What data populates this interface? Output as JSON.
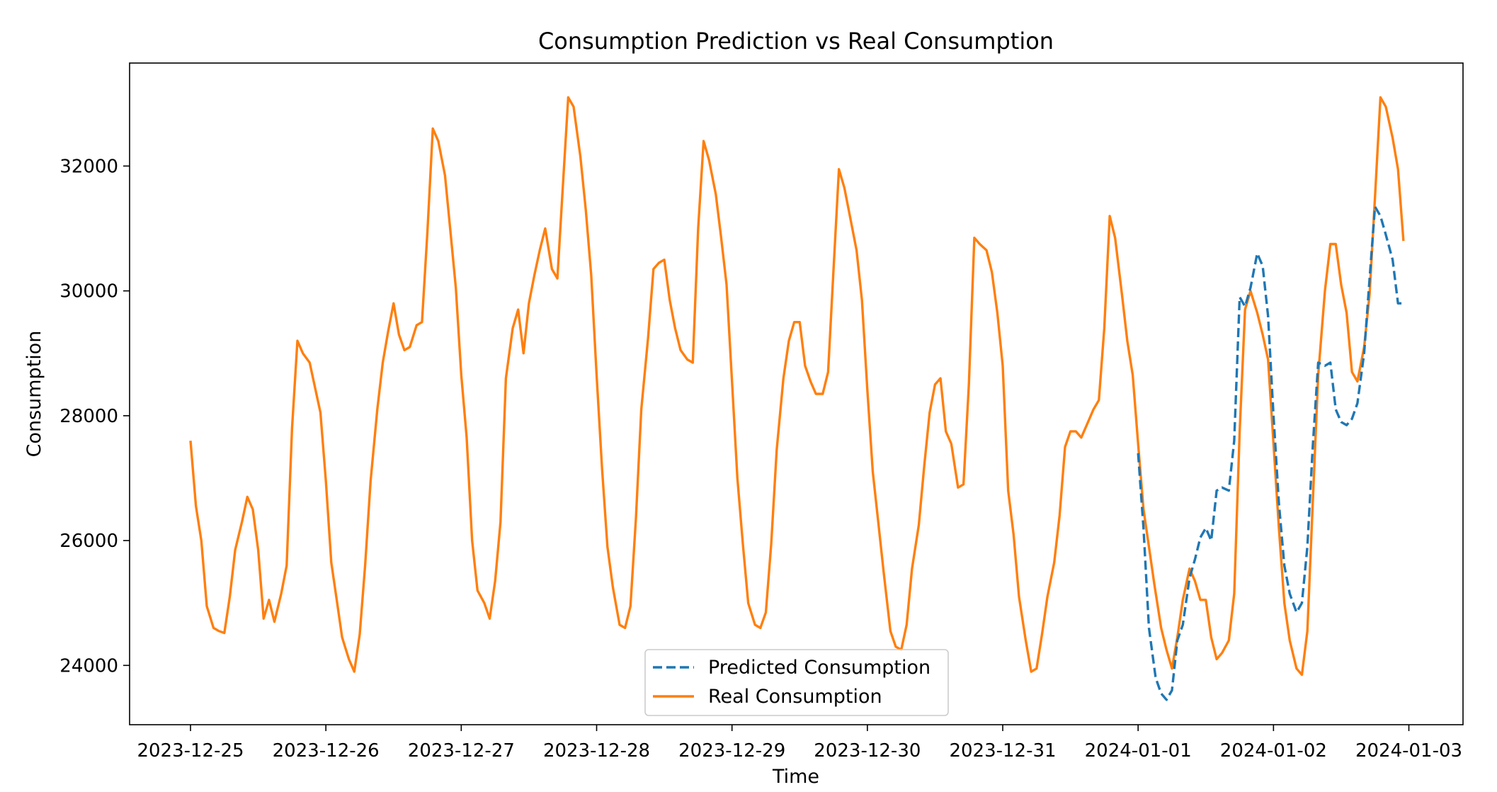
{
  "chart_data": {
    "type": "line",
    "title": "Consumption Prediction vs Real Consumption",
    "xlabel": "Time",
    "ylabel": "Consumption",
    "x_tick_labels": [
      "2023-12-25",
      "2023-12-26",
      "2023-12-27",
      "2023-12-28",
      "2023-12-29",
      "2023-12-30",
      "2023-12-31",
      "2024-01-01",
      "2024-01-02",
      "2024-01-03"
    ],
    "y_ticks": [
      24000,
      26000,
      28000,
      30000,
      32000
    ],
    "xlim_days": [
      -0.45,
      9.4
    ],
    "ylim": [
      23050,
      33650
    ],
    "grid": false,
    "legend_position": "lower center",
    "series": [
      {
        "name": "Predicted Consumption",
        "color": "#1f77b4",
        "dash": "dashed",
        "x_days": [
          7.0,
          7.04,
          7.08,
          7.13,
          7.17,
          7.21,
          7.25,
          7.29,
          7.33,
          7.38,
          7.42,
          7.46,
          7.5,
          7.54,
          7.58,
          7.62,
          7.67,
          7.71,
          7.75,
          7.79,
          7.83,
          7.88,
          7.92,
          7.96,
          8.0,
          8.04,
          8.08,
          8.12,
          8.17,
          8.21,
          8.25,
          8.29,
          8.33,
          8.38,
          8.42,
          8.46,
          8.5,
          8.54,
          8.58,
          8.62,
          8.67,
          8.71,
          8.75,
          8.79,
          8.83,
          8.88,
          8.92,
          8.96
        ],
        "values": [
          27400,
          26200,
          24600,
          23800,
          23550,
          23450,
          23600,
          24400,
          24650,
          25400,
          25700,
          26050,
          26200,
          26000,
          26800,
          26850,
          26800,
          27600,
          29900,
          29750,
          30050,
          30600,
          30400,
          29600,
          28000,
          26600,
          25600,
          25150,
          24850,
          25000,
          25900,
          27500,
          28850,
          28800,
          28850,
          28100,
          27900,
          27850,
          27950,
          28200,
          29000,
          30200,
          31350,
          31200,
          30900,
          30500,
          29800,
          29800
        ]
      },
      {
        "name": "Real Consumption",
        "color": "#ff7f0e",
        "dash": "solid",
        "x_days": [
          0.0,
          0.04,
          0.08,
          0.12,
          0.17,
          0.21,
          0.25,
          0.29,
          0.33,
          0.38,
          0.42,
          0.46,
          0.5,
          0.54,
          0.58,
          0.62,
          0.67,
          0.71,
          0.75,
          0.79,
          0.83,
          0.88,
          0.92,
          0.96,
          1.0,
          1.04,
          1.08,
          1.12,
          1.17,
          1.21,
          1.25,
          1.29,
          1.33,
          1.38,
          1.42,
          1.46,
          1.5,
          1.54,
          1.58,
          1.62,
          1.67,
          1.71,
          1.75,
          1.79,
          1.83,
          1.88,
          1.92,
          1.96,
          2.0,
          2.04,
          2.08,
          2.12,
          2.17,
          2.21,
          2.25,
          2.29,
          2.33,
          2.38,
          2.42,
          2.46,
          2.5,
          2.54,
          2.58,
          2.62,
          2.67,
          2.71,
          2.75,
          2.79,
          2.83,
          2.88,
          2.92,
          2.96,
          3.0,
          3.04,
          3.08,
          3.12,
          3.17,
          3.21,
          3.25,
          3.29,
          3.33,
          3.38,
          3.42,
          3.46,
          3.5,
          3.54,
          3.58,
          3.62,
          3.67,
          3.71,
          3.75,
          3.79,
          3.83,
          3.88,
          3.92,
          3.96,
          4.0,
          4.04,
          4.08,
          4.12,
          4.17,
          4.21,
          4.25,
          4.29,
          4.33,
          4.38,
          4.42,
          4.46,
          4.5,
          4.54,
          4.58,
          4.62,
          4.67,
          4.71,
          4.75,
          4.79,
          4.83,
          4.88,
          4.92,
          4.96,
          5.0,
          5.04,
          5.08,
          5.12,
          5.17,
          5.21,
          5.25,
          5.29,
          5.33,
          5.38,
          5.42,
          5.46,
          5.5,
          5.54,
          5.58,
          5.62,
          5.67,
          5.71,
          5.75,
          5.79,
          5.83,
          5.88,
          5.92,
          5.96,
          6.0,
          6.04,
          6.08,
          6.12,
          6.17,
          6.21,
          6.25,
          6.29,
          6.33,
          6.38,
          6.42,
          6.46,
          6.5,
          6.54,
          6.58,
          6.62,
          6.67,
          6.71,
          6.75,
          6.79,
          6.83,
          6.88,
          6.92,
          6.96,
          7.0,
          7.04,
          7.08,
          7.12,
          7.17,
          7.21,
          7.25,
          7.29,
          7.33,
          7.38,
          7.42,
          7.46,
          7.5,
          7.54,
          7.58,
          7.62,
          7.67,
          7.71,
          7.75,
          7.79,
          7.83,
          7.88,
          7.92,
          7.96,
          8.0,
          8.04,
          8.08,
          8.12,
          8.17,
          8.21,
          8.25,
          8.29,
          8.33,
          8.38,
          8.42,
          8.46,
          8.5,
          8.54,
          8.58,
          8.62,
          8.67,
          8.71,
          8.75,
          8.79,
          8.83,
          8.88,
          8.92,
          8.96
        ],
        "values": [
          27600,
          26550,
          26000,
          24950,
          24600,
          24550,
          24520,
          25100,
          25850,
          26300,
          26700,
          26500,
          25850,
          24750,
          25050,
          24700,
          25150,
          25600,
          27800,
          29200,
          29000,
          28850,
          28450,
          28050,
          26950,
          25650,
          25050,
          24450,
          24100,
          23900,
          24500,
          25600,
          26950,
          28100,
          28850,
          29350,
          29800,
          29300,
          29050,
          29100,
          29450,
          29500,
          30950,
          32600,
          32400,
          31850,
          30950,
          30050,
          28650,
          27650,
          26000,
          25200,
          25000,
          24750,
          25350,
          26300,
          28600,
          29400,
          29700,
          29000,
          29800,
          30250,
          30650,
          31000,
          30350,
          30200,
          31650,
          33100,
          32950,
          32150,
          31300,
          30250,
          28650,
          27150,
          25900,
          25250,
          24650,
          24600,
          24950,
          26350,
          28100,
          29250,
          30350,
          30450,
          30500,
          29850,
          29400,
          29050,
          28900,
          28850,
          31000,
          32400,
          32100,
          31550,
          30850,
          30100,
          28550,
          27000,
          25950,
          25000,
          24650,
          24600,
          24850,
          25950,
          27450,
          28600,
          29200,
          29500,
          29500,
          28800,
          28550,
          28350,
          28350,
          28700,
          30350,
          31950,
          31650,
          31100,
          30650,
          29850,
          28400,
          27100,
          26300,
          25500,
          24550,
          24300,
          24250,
          24650,
          25550,
          26250,
          27200,
          28050,
          28500,
          28600,
          27750,
          27550,
          26850,
          26900,
          28500,
          30850,
          30750,
          30650,
          30300,
          29650,
          28800,
          26800,
          26100,
          25100,
          24400,
          23900,
          23950,
          24500,
          25100,
          25650,
          26400,
          27500,
          27750,
          27750,
          27650,
          27850,
          28100,
          28250,
          29400,
          31200,
          30850,
          29950,
          29200,
          28650,
          27550,
          26500,
          25900,
          25300,
          24600,
          24250,
          23950,
          24450,
          25050,
          25550,
          25350,
          25050,
          25050,
          24450,
          24100,
          24200,
          24400,
          25150,
          27750,
          29700,
          30000,
          29650,
          29300,
          28900,
          27550,
          26200,
          25000,
          24400,
          23950,
          23850,
          24550,
          26600,
          28650,
          30000,
          30750,
          30750,
          30100,
          29650,
          28700,
          28550,
          29100,
          29950,
          31500,
          33100,
          32950,
          32450,
          31950,
          30800
        ]
      }
    ]
  }
}
